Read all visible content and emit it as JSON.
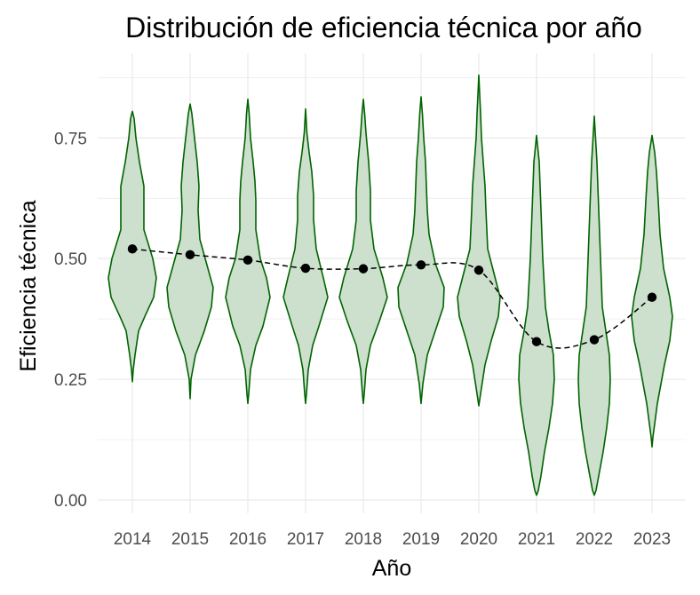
{
  "chart_data": {
    "type": "violin",
    "title": "Distribución de eficiencia técnica por año",
    "xlabel": "Año",
    "ylabel": "Eficiencia técnica",
    "categories": [
      "2014",
      "2015",
      "2016",
      "2017",
      "2018",
      "2019",
      "2020",
      "2021",
      "2022",
      "2023"
    ],
    "y_ticks": [
      "0.00",
      "0.25",
      "0.50",
      "0.75"
    ],
    "ylim": [
      0.0,
      0.88
    ],
    "grid": true,
    "legend": "none",
    "colors": {
      "violin_fill": "#cddfcd",
      "violin_stroke": "#006400",
      "mean_point": "#000000",
      "mean_line": "#000000",
      "grid": "#ebebeb"
    },
    "series": [
      {
        "name": "",
        "role": "violin-range",
        "min": [
          0.245,
          0.21,
          0.2,
          0.2,
          0.2,
          0.2,
          0.195,
          0.01,
          0.01,
          0.11
        ],
        "max": [
          0.805,
          0.82,
          0.83,
          0.81,
          0.83,
          0.835,
          0.88,
          0.755,
          0.795,
          0.755
        ]
      },
      {
        "name": "",
        "role": "mean",
        "values": [
          0.52,
          0.508,
          0.497,
          0.48,
          0.479,
          0.487,
          0.476,
          0.328,
          0.332,
          0.42
        ]
      }
    ]
  }
}
